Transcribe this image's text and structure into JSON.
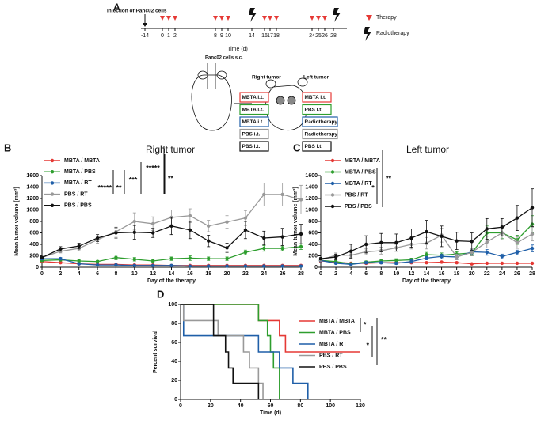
{
  "diagram": {
    "panel": "A",
    "injection": "Injection of Panc02 cells",
    "therapy_legend": "Therapy",
    "radiotherapy_legend": "Radiotherapy",
    "time_label": "Time (d)",
    "timeline_labels": [
      "-14",
      "0",
      "1",
      "2",
      "8",
      "9",
      "10",
      "14",
      "16",
      "17",
      "18",
      "24",
      "25",
      "26",
      "28"
    ],
    "cells_label": "Panc02 cells s.c.",
    "right_tumor": "Right tumor",
    "left_tumor": "Left tumor",
    "boxes": [
      {
        "right": "MBTA i.t.",
        "left": "MBTA i.t.",
        "color": "#e53935"
      },
      {
        "right": "MBTA i.t.",
        "left": "PBS i.t.",
        "color": "#2e9e2e"
      },
      {
        "right": "MBTA i.t.",
        "left": "Radiotherapy",
        "color": "#1f5fa8"
      },
      {
        "right": "PBS i.t.",
        "left": "Radiotherapy",
        "color": "#999999"
      },
      {
        "right": "PBS i.t.",
        "left": "PBS i.t.",
        "color": "#111111"
      }
    ]
  },
  "chart_data": [
    {
      "type": "line",
      "panel": "B",
      "title": "Right tumor",
      "x_label": "Day of the therapy",
      "y_label": "Mean tumor volume [mm³]",
      "x": [
        0,
        2,
        4,
        6,
        8,
        10,
        12,
        14,
        16,
        18,
        20,
        22,
        24,
        26,
        28
      ],
      "xlim": [
        0,
        28
      ],
      "xticks": [
        0,
        2,
        4,
        6,
        8,
        10,
        12,
        14,
        16,
        18,
        20,
        22,
        24,
        26,
        28
      ],
      "ylim": [
        0,
        1600
      ],
      "yticks": [
        0,
        200,
        400,
        600,
        800,
        1000,
        1200,
        1400,
        1600
      ],
      "markers": true,
      "series": [
        {
          "name": "MBTA / MBTA",
          "color": "#e53935",
          "values": [
            100,
            80,
            60,
            50,
            50,
            40,
            40,
            30,
            30,
            30,
            30,
            30,
            30,
            30,
            30
          ],
          "errors": [
            20,
            15,
            15,
            10,
            10,
            10,
            10,
            10,
            10,
            10,
            10,
            10,
            10,
            10,
            10
          ]
        },
        {
          "name": "MBTA / PBS",
          "color": "#2e9e2e",
          "values": [
            120,
            130,
            110,
            100,
            170,
            140,
            110,
            150,
            160,
            150,
            150,
            260,
            330,
            330,
            360
          ],
          "errors": [
            20,
            20,
            20,
            20,
            40,
            30,
            20,
            30,
            40,
            30,
            30,
            40,
            50,
            40,
            50
          ]
        },
        {
          "name": "MBTA / RT",
          "color": "#1f5fa8",
          "values": [
            150,
            150,
            60,
            40,
            40,
            30,
            30,
            30,
            20,
            20,
            20,
            20,
            20,
            20,
            20
          ],
          "errors": [
            20,
            20,
            15,
            10,
            10,
            10,
            10,
            10,
            10,
            10,
            10,
            10,
            10,
            10,
            10
          ]
        },
        {
          "name": "PBS / RT",
          "color": "#999999",
          "values": [
            170,
            280,
            330,
            480,
            620,
            800,
            760,
            870,
            900,
            720,
            790,
            860,
            1270,
            1270,
            1180
          ],
          "errors": [
            20,
            30,
            40,
            60,
            80,
            150,
            120,
            130,
            120,
            100,
            110,
            130,
            200,
            200,
            250
          ]
        },
        {
          "name": "PBS / PBS",
          "color": "#111111",
          "values": [
            170,
            320,
            370,
            510,
            600,
            610,
            600,
            720,
            650,
            460,
            340,
            650,
            510,
            530,
            580
          ],
          "errors": [
            20,
            40,
            50,
            60,
            90,
            120,
            80,
            150,
            150,
            100,
            80,
            150,
            120,
            150,
            170
          ]
        }
      ],
      "annotations": [
        "*****",
        "**",
        "***",
        "*****",
        "**"
      ]
    },
    {
      "type": "line",
      "panel": "C",
      "title": "Left tumor",
      "x_label": "Day of the therapy",
      "y_label": "Mean tumor volume [mm³]",
      "x": [
        0,
        2,
        4,
        6,
        8,
        10,
        12,
        14,
        16,
        18,
        20,
        22,
        24,
        26,
        28
      ],
      "xlim": [
        0,
        28
      ],
      "xticks": [
        0,
        2,
        4,
        6,
        8,
        10,
        12,
        14,
        16,
        18,
        20,
        22,
        24,
        26,
        28
      ],
      "ylim": [
        0,
        1600
      ],
      "yticks": [
        0,
        200,
        400,
        600,
        800,
        1000,
        1200,
        1400,
        1600
      ],
      "markers": true,
      "series": [
        {
          "name": "MBTA / MBTA",
          "color": "#e53935",
          "values": [
            110,
            90,
            70,
            70,
            80,
            80,
            80,
            80,
            90,
            80,
            60,
            70,
            70,
            70,
            70
          ],
          "errors": [
            20,
            15,
            10,
            10,
            10,
            10,
            10,
            10,
            10,
            10,
            10,
            10,
            10,
            10,
            10
          ]
        },
        {
          "name": "MBTA / PBS",
          "color": "#2e9e2e",
          "values": [
            120,
            100,
            60,
            90,
            110,
            120,
            130,
            220,
            210,
            230,
            250,
            600,
            600,
            480,
            750
          ],
          "errors": [
            20,
            20,
            20,
            20,
            20,
            30,
            30,
            40,
            40,
            40,
            50,
            120,
            100,
            80,
            150
          ]
        },
        {
          "name": "MBTA / RT",
          "color": "#1f5fa8",
          "values": [
            120,
            70,
            50,
            80,
            80,
            70,
            100,
            160,
            190,
            180,
            270,
            260,
            190,
            260,
            330
          ],
          "errors": [
            20,
            15,
            10,
            20,
            20,
            20,
            30,
            30,
            40,
            40,
            50,
            50,
            40,
            40,
            60
          ]
        },
        {
          "name": "PBS / RT",
          "color": "#999999",
          "values": [
            130,
            210,
            210,
            270,
            290,
            340,
            400,
            420,
            560,
            180,
            260,
            440,
            600,
            430,
            580
          ],
          "errors": [
            20,
            40,
            40,
            50,
            60,
            60,
            80,
            100,
            120,
            50,
            60,
            100,
            120,
            100,
            120
          ]
        },
        {
          "name": "PBS / PBS",
          "color": "#111111",
          "values": [
            150,
            180,
            280,
            400,
            430,
            430,
            510,
            620,
            540,
            460,
            450,
            670,
            700,
            860,
            1040
          ],
          "errors": [
            20,
            50,
            120,
            150,
            160,
            150,
            160,
            200,
            180,
            150,
            150,
            180,
            150,
            220,
            330
          ]
        }
      ],
      "annotations": [
        "*",
        "**"
      ]
    },
    {
      "type": "line",
      "panel": "D",
      "x_label": "Time (d)",
      "y_label": "Percent survival",
      "xlim": [
        0,
        120
      ],
      "xticks": [
        0,
        20,
        40,
        60,
        80,
        100,
        120
      ],
      "ylim": [
        0,
        100
      ],
      "yticks": [
        0,
        20,
        40,
        60,
        80,
        100
      ],
      "markers": false,
      "series": [
        {
          "name": "MBTA / MBTA",
          "color": "#e53935",
          "x": [
            0,
            52,
            52,
            66,
            66,
            70,
            70,
            120
          ],
          "values": [
            100,
            100,
            83,
            83,
            67,
            67,
            50,
            50
          ]
        },
        {
          "name": "MBTA / PBS",
          "color": "#2e9e2e",
          "x": [
            0,
            52,
            52,
            58,
            58,
            60,
            60,
            62,
            62,
            66,
            66
          ],
          "values": [
            100,
            100,
            83,
            83,
            67,
            67,
            50,
            50,
            33,
            33,
            0
          ]
        },
        {
          "name": "MBTA / RT",
          "color": "#1f5fa8",
          "x": [
            0,
            2,
            2,
            52,
            52,
            66,
            66,
            75,
            75,
            85,
            85
          ],
          "values": [
            100,
            100,
            67,
            67,
            50,
            50,
            33,
            33,
            17,
            17,
            0
          ]
        },
        {
          "name": "PBS / RT",
          "color": "#999999",
          "x": [
            0,
            2,
            2,
            25,
            25,
            42,
            42,
            46,
            46,
            52,
            52,
            55,
            55
          ],
          "values": [
            100,
            100,
            83,
            83,
            67,
            67,
            50,
            50,
            33,
            33,
            17,
            17,
            0
          ]
        },
        {
          "name": "PBS / PBS",
          "color": "#111111",
          "x": [
            0,
            22,
            22,
            30,
            30,
            32,
            32,
            35,
            35,
            52,
            52
          ],
          "values": [
            100,
            100,
            67,
            67,
            50,
            50,
            33,
            33,
            17,
            17,
            0
          ]
        }
      ],
      "annotations": [
        "*",
        "*",
        "**"
      ]
    }
  ]
}
